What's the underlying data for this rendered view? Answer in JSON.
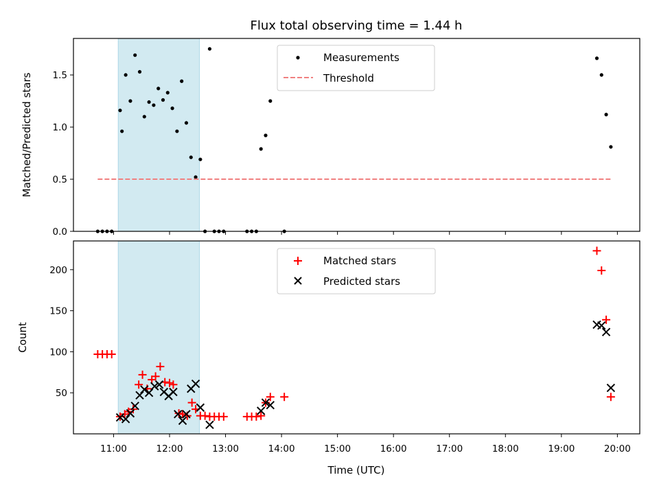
{
  "title": "Flux total observing time = 1.44 h",
  "xlabel": "Time (UTC)",
  "xticks": [
    "11:00",
    "12:00",
    "13:00",
    "14:00",
    "15:00",
    "16:00",
    "17:00",
    "18:00",
    "19:00",
    "20:00"
  ],
  "colors": {
    "shade": "#add8e6",
    "threshold": "#f08080",
    "matched": "#ff0000",
    "predicted": "#000000",
    "measure": "#000000"
  },
  "chart_data": [
    {
      "type": "scatter",
      "ylabel": "Matched/Predicted stars",
      "xlim": [
        "10:17",
        "20:24"
      ],
      "ylim": [
        0,
        1.85
      ],
      "yticks": [
        "0.0",
        "0.5",
        "1.0",
        "1.5"
      ],
      "shaded_region": [
        "11:05",
        "12:32"
      ],
      "legend_position": "top-center",
      "series": [
        {
          "name": "Measurements",
          "kind": "points",
          "points": [
            [
              "10:43",
              0
            ],
            [
              "10:48",
              0
            ],
            [
              "10:53",
              0
            ],
            [
              "10:58",
              0
            ],
            [
              "11:07",
              1.16
            ],
            [
              "11:09",
              0.96
            ],
            [
              "11:13",
              1.5
            ],
            [
              "11:18",
              1.25
            ],
            [
              "11:23",
              1.69
            ],
            [
              "11:28",
              1.53
            ],
            [
              "11:33",
              1.1
            ],
            [
              "11:38",
              1.24
            ],
            [
              "11:43",
              1.21
            ],
            [
              "11:48",
              1.37
            ],
            [
              "11:53",
              1.26
            ],
            [
              "11:58",
              1.33
            ],
            [
              "12:03",
              1.18
            ],
            [
              "12:08",
              0.96
            ],
            [
              "12:13",
              1.44
            ],
            [
              "12:18",
              1.04
            ],
            [
              "12:23",
              0.71
            ],
            [
              "12:28",
              0.52
            ],
            [
              "12:33",
              0.69
            ],
            [
              "12:38",
              0
            ],
            [
              "12:43",
              1.75
            ],
            [
              "12:48",
              0
            ],
            [
              "12:53",
              0
            ],
            [
              "12:58",
              0
            ],
            [
              "13:23",
              0
            ],
            [
              "13:28",
              0
            ],
            [
              "13:33",
              0
            ],
            [
              "13:38",
              0.79
            ],
            [
              "13:43",
              0.92
            ],
            [
              "13:48",
              1.25
            ],
            [
              "14:03",
              0
            ],
            [
              "19:38",
              1.66
            ],
            [
              "19:43",
              1.5
            ],
            [
              "19:48",
              1.12
            ],
            [
              "19:53",
              0.81
            ]
          ]
        },
        {
          "name": "Threshold",
          "kind": "dashed-line",
          "points": [
            [
              "10:43",
              0.5
            ],
            [
              "19:53",
              0.5
            ]
          ]
        }
      ]
    },
    {
      "type": "scatter",
      "ylabel": "Count",
      "xlim": [
        "10:17",
        "20:24"
      ],
      "ylim": [
        0,
        235
      ],
      "yticks": [
        "50",
        "100",
        "150",
        "200"
      ],
      "shaded_region": [
        "11:05",
        "12:32"
      ],
      "legend_position": "top-center",
      "series": [
        {
          "name": "Matched stars",
          "kind": "plus",
          "points": [
            [
              "10:43",
              97
            ],
            [
              "10:48",
              97
            ],
            [
              "10:53",
              97
            ],
            [
              "10:58",
              97
            ],
            [
              "11:07",
              21
            ],
            [
              "11:12",
              24
            ],
            [
              "11:16",
              27
            ],
            [
              "11:21",
              30
            ],
            [
              "11:27",
              60
            ],
            [
              "11:31",
              72
            ],
            [
              "11:36",
              55
            ],
            [
              "11:41",
              66
            ],
            [
              "11:45",
              70
            ],
            [
              "11:50",
              82
            ],
            [
              "11:55",
              63
            ],
            [
              "12:00",
              62
            ],
            [
              "12:04",
              60
            ],
            [
              "12:10",
              25
            ],
            [
              "12:14",
              24
            ],
            [
              "12:19",
              22
            ],
            [
              "12:24",
              38
            ],
            [
              "12:28",
              30
            ],
            [
              "12:33",
              22
            ],
            [
              "12:38",
              22
            ],
            [
              "12:43",
              21
            ],
            [
              "12:48",
              21
            ],
            [
              "12:53",
              21
            ],
            [
              "12:58",
              21
            ],
            [
              "13:23",
              21
            ],
            [
              "13:28",
              21
            ],
            [
              "13:33",
              21
            ],
            [
              "13:38",
              22
            ],
            [
              "13:43",
              38
            ],
            [
              "13:48",
              45
            ],
            [
              "14:03",
              45
            ],
            [
              "19:38",
              223
            ],
            [
              "19:43",
              199
            ],
            [
              "19:48",
              139
            ],
            [
              "19:53",
              45
            ]
          ]
        },
        {
          "name": "Predicted stars",
          "kind": "x",
          "points": [
            [
              "11:07",
              20
            ],
            [
              "11:13",
              18
            ],
            [
              "11:18",
              25
            ],
            [
              "11:23",
              34
            ],
            [
              "11:28",
              47
            ],
            [
              "11:33",
              54
            ],
            [
              "11:38",
              50
            ],
            [
              "11:44",
              58
            ],
            [
              "11:49",
              60
            ],
            [
              "11:54",
              51
            ],
            [
              "11:59",
              46
            ],
            [
              "12:04",
              51
            ],
            [
              "12:09",
              24
            ],
            [
              "12:14",
              16
            ],
            [
              "12:18",
              24
            ],
            [
              "12:23",
              55
            ],
            [
              "12:28",
              61
            ],
            [
              "12:33",
              32
            ],
            [
              "12:43",
              11
            ],
            [
              "13:38",
              28
            ],
            [
              "13:43",
              38
            ],
            [
              "13:48",
              35
            ],
            [
              "19:38",
              133
            ],
            [
              "19:43",
              132
            ],
            [
              "19:48",
              124
            ],
            [
              "19:53",
              56
            ]
          ]
        }
      ]
    }
  ]
}
